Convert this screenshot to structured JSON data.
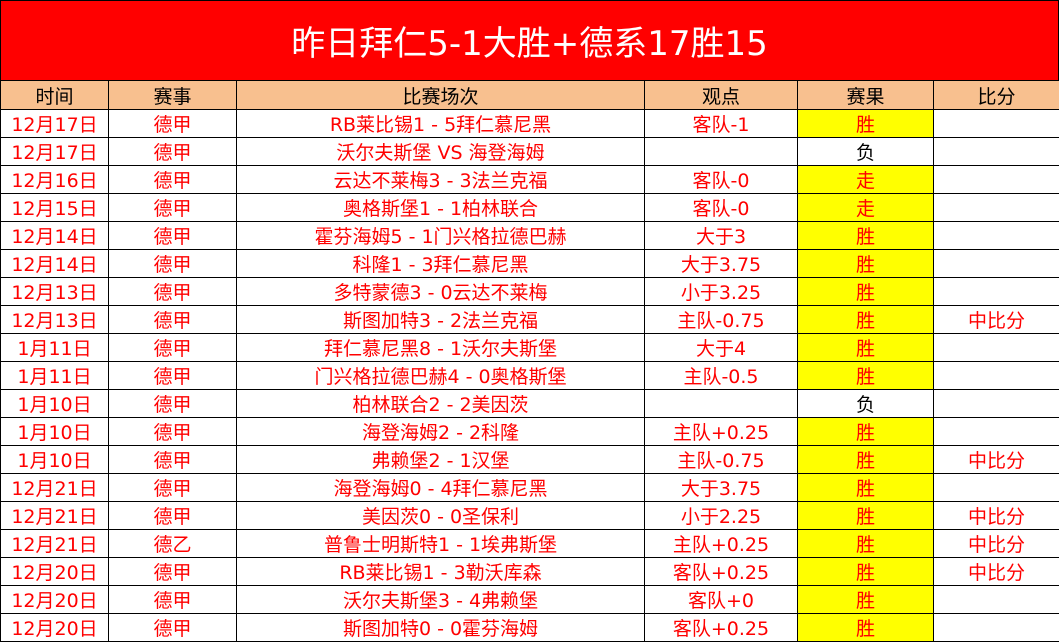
{
  "title": "昨日拜仁5-1大胜+德系17胜15",
  "colors": {
    "title_bg": "#ff0000",
    "header_bg": "#f8c08f",
    "highlight": "#ffff00",
    "text": "#ff0000"
  },
  "headers": [
    "时间",
    "赛事",
    "比赛场次",
    "观点",
    "赛果",
    "比分"
  ],
  "rows": [
    {
      "date": "12月17日",
      "league": "德甲",
      "match": "RB莱比锡1 - 5拜仁慕尼黑",
      "pick": "客队-1",
      "result": "胜",
      "score": ""
    },
    {
      "date": "12月17日",
      "league": "德甲",
      "match": "沃尔夫斯堡 VS 海登海姆",
      "pick": "",
      "result": "负",
      "score": ""
    },
    {
      "date": "12月16日",
      "league": "德甲",
      "match": "云达不莱梅3 - 3法兰克福",
      "pick": "客队-0",
      "result": "走",
      "score": ""
    },
    {
      "date": "12月15日",
      "league": "德甲",
      "match": "奥格斯堡1 - 1柏林联合",
      "pick": "客队-0",
      "result": "走",
      "score": ""
    },
    {
      "date": "12月14日",
      "league": "德甲",
      "match": "霍芬海姆5 - 1门兴格拉德巴赫",
      "pick": "大于3",
      "result": "胜",
      "score": ""
    },
    {
      "date": "12月14日",
      "league": "德甲",
      "match": "科隆1 - 3拜仁慕尼黑",
      "pick": "大于3.75",
      "result": "胜",
      "score": ""
    },
    {
      "date": "12月13日",
      "league": "德甲",
      "match": "多特蒙德3 - 0云达不莱梅",
      "pick": "小于3.25",
      "result": "胜",
      "score": ""
    },
    {
      "date": "12月13日",
      "league": "德甲",
      "match": "斯图加特3 - 2法兰克福",
      "pick": "主队-0.75",
      "result": "胜",
      "score": "中比分"
    },
    {
      "date": "1月11日",
      "league": "德甲",
      "match": "拜仁慕尼黑8 - 1沃尔夫斯堡",
      "pick": "大于4",
      "result": "胜",
      "score": ""
    },
    {
      "date": "1月11日",
      "league": "德甲",
      "match": "门兴格拉德巴赫4 - 0奥格斯堡",
      "pick": "主队-0.5",
      "result": "胜",
      "score": ""
    },
    {
      "date": "1月10日",
      "league": "德甲",
      "match": "柏林联合2 - 2美因茨",
      "pick": "",
      "result": "负",
      "score": ""
    },
    {
      "date": "1月10日",
      "league": "德甲",
      "match": "海登海姆2 - 2科隆",
      "pick": "主队+0.25",
      "result": "胜",
      "score": ""
    },
    {
      "date": "1月10日",
      "league": "德甲",
      "match": "弗赖堡2 - 1汉堡",
      "pick": "主队-0.75",
      "result": "胜",
      "score": "中比分"
    },
    {
      "date": "12月21日",
      "league": "德甲",
      "match": "海登海姆0 - 4拜仁慕尼黑",
      "pick": "大于3.75",
      "result": "胜",
      "score": ""
    },
    {
      "date": "12月21日",
      "league": "德甲",
      "match": "美因茨0 - 0圣保利",
      "pick": "小于2.25",
      "result": "胜",
      "score": "中比分"
    },
    {
      "date": "12月21日",
      "league": "德乙",
      "match": "普鲁士明斯特1 - 1埃弗斯堡",
      "pick": "主队+0.25",
      "result": "胜",
      "score": "中比分"
    },
    {
      "date": "12月20日",
      "league": "德甲",
      "match": "RB莱比锡1 - 3勒沃库森",
      "pick": "客队+0.25",
      "result": "胜",
      "score": "中比分"
    },
    {
      "date": "12月20日",
      "league": "德甲",
      "match": "沃尔夫斯堡3 - 4弗赖堡",
      "pick": "客队+0",
      "result": "胜",
      "score": ""
    },
    {
      "date": "12月20日",
      "league": "德甲",
      "match": "斯图加特0 - 0霍芬海姆",
      "pick": "客队+0.25",
      "result": "胜",
      "score": ""
    }
  ]
}
